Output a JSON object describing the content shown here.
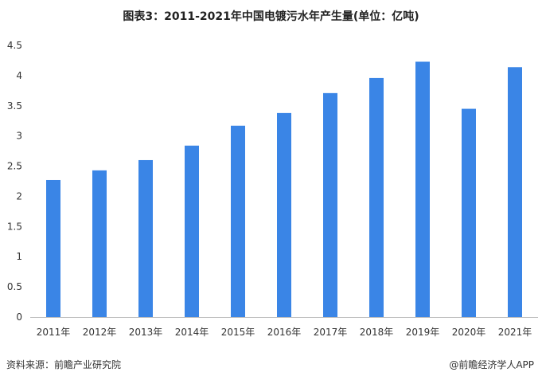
{
  "title": "图表3：2011-2021年中国电镀污水年产生量(单位：亿吨)",
  "footer": {
    "source": "资料来源：前瞻产业研究院",
    "brand": "@前瞻经济学人APP"
  },
  "colors": {
    "bar": "#3a85e6",
    "axis": "#bfbfbf",
    "text": "#333333"
  },
  "chart_data": {
    "type": "bar",
    "title": "图表3：2011-2021年中国电镀污水年产生量(单位：亿吨)",
    "categories": [
      "2011年",
      "2012年",
      "2013年",
      "2014年",
      "2015年",
      "2016年",
      "2017年",
      "2018年",
      "2019年",
      "2020年",
      "2021年"
    ],
    "values": [
      2.27,
      2.43,
      2.6,
      2.84,
      3.17,
      3.38,
      3.71,
      3.96,
      4.23,
      3.45,
      4.14
    ],
    "yticks": [
      "0",
      "0.5",
      "1",
      "1.5",
      "2",
      "2.5",
      "3",
      "3.5",
      "4",
      "4.5"
    ],
    "ylim": [
      0,
      4.5
    ],
    "xlabel": "",
    "ylabel": "",
    "grid": false,
    "legend": "none"
  }
}
